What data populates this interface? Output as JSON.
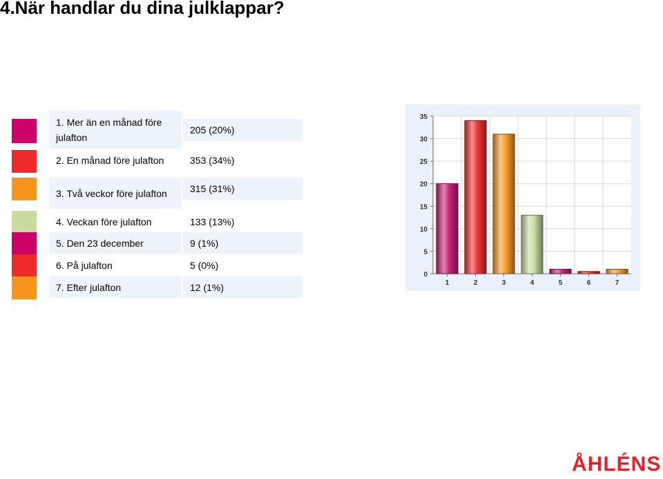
{
  "page": {
    "title": "4.När handlar du dina julklappar?",
    "logo_text": "ÅHLÉNS",
    "logo_color": "#e4202a"
  },
  "legend": {
    "items": [
      {
        "label": "1. Mer än en månad före julafton",
        "value": "205 (20%)",
        "color": "#cc0066"
      },
      {
        "label": "2. En månad före julafton",
        "value": "353 (34%)",
        "color": "#ee2a2a"
      },
      {
        "label": "3. Två veckor före julafton",
        "value": "315 (31%)",
        "color": "#f7941d"
      },
      {
        "label": "4. Veckan före julafton",
        "value": "133 (13%)",
        "color": "#c8dca0"
      },
      {
        "label": "5. Den 23 december",
        "value": "9 (1%)",
        "color": "#cc0066"
      },
      {
        "label": "6. På julafton",
        "value": "5 (0%)",
        "color": "#ee2a2a"
      },
      {
        "label": "7. Efter julafton",
        "value": "12 (1%)",
        "color": "#f7941d"
      }
    ]
  },
  "chart_data": {
    "type": "bar",
    "categories": [
      "1",
      "2",
      "3",
      "4",
      "5",
      "6",
      "7"
    ],
    "values": [
      20,
      34,
      31,
      13,
      1,
      0.5,
      1
    ],
    "colors": [
      "#cc2277",
      "#ee3333",
      "#f79a2a",
      "#c8dca0",
      "#cc2277",
      "#ee3333",
      "#f79a2a"
    ],
    "ylim": [
      0,
      35
    ],
    "yticks": [
      0,
      5,
      10,
      15,
      20,
      25,
      30,
      35
    ],
    "grid": true,
    "plot_background": "#ffffff"
  }
}
